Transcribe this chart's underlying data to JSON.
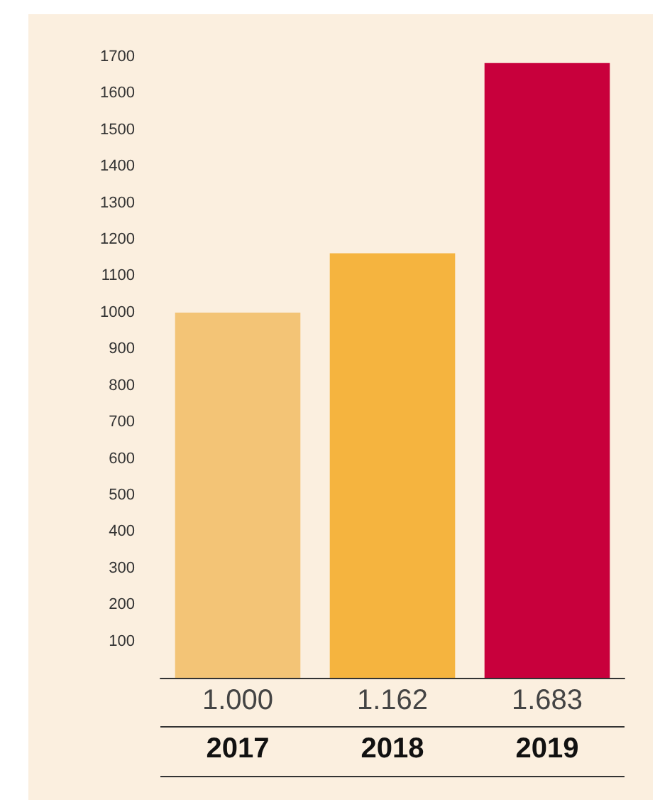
{
  "chart_data": {
    "type": "bar",
    "categories": [
      "2017",
      "2018",
      "2019"
    ],
    "values": [
      1000,
      1162,
      1683
    ],
    "colors": [
      "#f3c476",
      "#f5b43f",
      "#c8003c"
    ],
    "value_labels": [
      "1.000",
      "1.162",
      "1.683"
    ],
    "ylim": [
      0,
      1700
    ],
    "yticks": [
      100,
      200,
      300,
      400,
      500,
      600,
      700,
      800,
      900,
      1000,
      1100,
      1200,
      1300,
      1400,
      1500,
      1600,
      1700
    ],
    "grid": false
  }
}
